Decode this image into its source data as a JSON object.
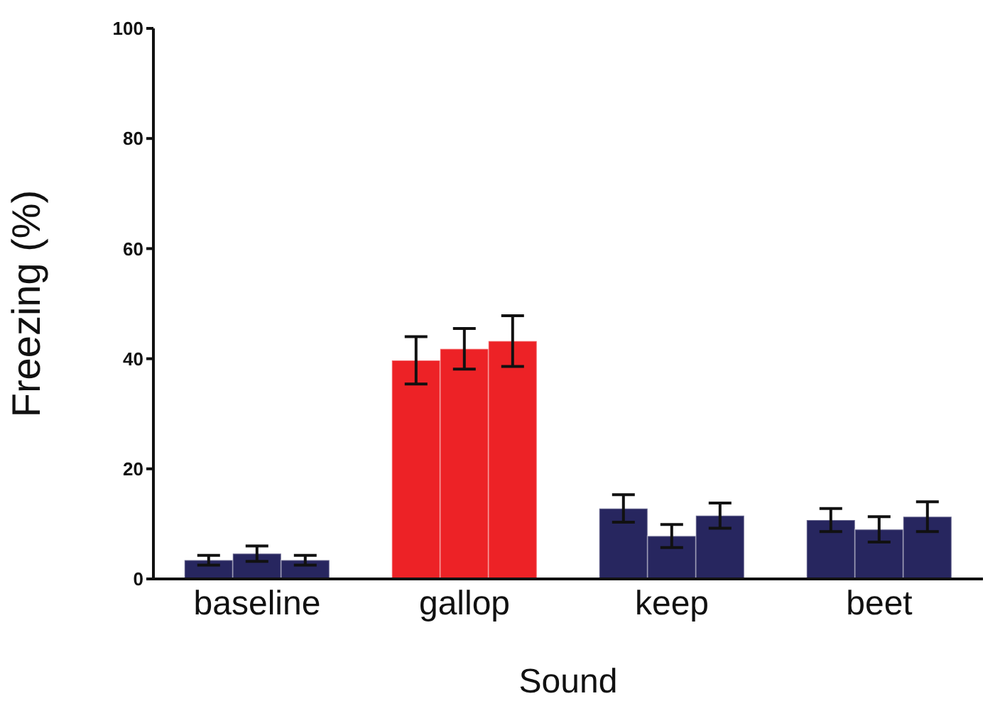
{
  "chart_data": {
    "type": "bar",
    "xlabel": "Sound",
    "ylabel": "Freezing (%)",
    "categories": [
      "baseline",
      "gallop",
      "keep",
      "beet"
    ],
    "series": [
      {
        "colors": [
          "#27265f",
          "#ed2226",
          "#27265f",
          "#27265f"
        ],
        "values": [
          3.4,
          39.7,
          12.8,
          10.7
        ],
        "errors": [
          0.9,
          4.3,
          2.5,
          2.1
        ]
      },
      {
        "colors": [
          "#27265f",
          "#ed2226",
          "#27265f",
          "#27265f"
        ],
        "values": [
          4.6,
          41.8,
          7.8,
          9.0
        ],
        "errors": [
          1.4,
          3.7,
          2.1,
          2.3
        ]
      },
      {
        "colors": [
          "#27265f",
          "#ed2226",
          "#27265f",
          "#27265f"
        ],
        "values": [
          3.4,
          43.2,
          11.5,
          11.3
        ],
        "errors": [
          0.9,
          4.6,
          2.3,
          2.7
        ]
      }
    ],
    "ylim": [
      0,
      100
    ],
    "yticks": [
      0,
      20,
      40,
      60,
      80,
      100
    ],
    "grid": false,
    "legend": false
  }
}
